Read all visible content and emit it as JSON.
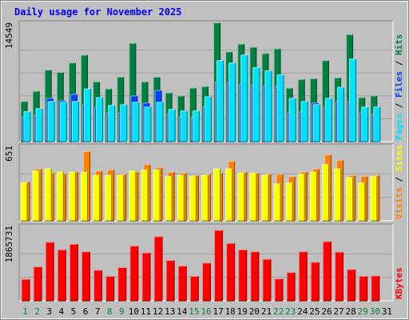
{
  "chart_data": {
    "title": "Daily usage for November 2025",
    "type": "bar",
    "categories": [
      "1",
      "2",
      "3",
      "4",
      "5",
      "6",
      "7",
      "8",
      "9",
      "10",
      "11",
      "12",
      "13",
      "14",
      "15",
      "16",
      "17",
      "18",
      "19",
      "20",
      "21",
      "22",
      "23",
      "24",
      "25",
      "26",
      "27",
      "28",
      "29",
      "30",
      "31"
    ],
    "weekend_days": [
      1,
      2,
      8,
      9,
      15,
      16,
      22,
      23,
      29,
      30
    ],
    "panels": [
      {
        "id": "hits",
        "max_label": "14549",
        "ymax": 14549,
        "series": [
          {
            "name": "Hits",
            "color": "#008040",
            "values": [
              5100,
              6400,
              9100,
              8800,
              10000,
              11000,
              7600,
              6700,
              8200,
              12500,
              7600,
              8200,
              6200,
              5800,
              6800,
              7000,
              15100,
              11400,
              12400,
              12000,
              11200,
              11800,
              6800,
              7900,
              8000,
              10300,
              8100,
              13600,
              5600,
              5800,
              null
            ]
          },
          {
            "name": "Files",
            "color": "#0040ff",
            "values": [
              3100,
              3400,
              5500,
              5200,
              6000,
              4700,
              4400,
              3600,
              3700,
              5800,
              4900,
              6500,
              3500,
              3200,
              3100,
              4500,
              7600,
              7500,
              7300,
              7200,
              7100,
              7000,
              3700,
              3800,
              4900,
              4400,
              5100,
              5100,
              3700,
              3500,
              null
            ]
          },
          {
            "name": "Pages",
            "color": "#00e0ff",
            "values": [
              3800,
              4200,
              5100,
              5000,
              5100,
              6700,
              5600,
              4600,
              4700,
              5000,
              4400,
              5000,
              4100,
              3900,
              3900,
              5700,
              10300,
              10000,
              11000,
              9400,
              9000,
              8500,
              5500,
              5100,
              4700,
              5500,
              6900,
              10500,
              4400,
              4400,
              null
            ]
          }
        ],
        "legend": [
          "Hits",
          "Files",
          "Pages"
        ]
      },
      {
        "id": "visits",
        "max_label": "651",
        "ymax": 651,
        "series": [
          {
            "name": "Visits",
            "color": "#ff8000",
            "values": [
              360,
              480,
              440,
              430,
              450,
              640,
              460,
              470,
              430,
              450,
              520,
              490,
              450,
              440,
              420,
              430,
              440,
              550,
              450,
              440,
              430,
              430,
              410,
              450,
              480,
              610,
              560,
              420,
              410,
              420,
              null
            ]
          },
          {
            "name": "Sites",
            "color": "#ffff00",
            "values": [
              350,
              460,
              480,
              450,
              450,
              450,
              420,
              420,
              420,
              460,
              470,
              470,
              410,
              420,
              410,
              420,
              480,
              480,
              440,
              440,
              420,
              340,
              350,
              430,
              450,
              520,
              480,
              400,
              350,
              410,
              null
            ]
          }
        ],
        "legend": [
          "Sites",
          "Visits"
        ]
      },
      {
        "id": "kbytes",
        "max_label": "1865731",
        "ymax": 1865731,
        "series": [
          {
            "name": "KBytes",
            "color": "#ff0000",
            "values": [
              570000,
              900000,
              1550000,
              1350000,
              1500000,
              1300000,
              810000,
              650000,
              880000,
              1450000,
              1270000,
              1700000,
              1070000,
              920000,
              650000,
              1000000,
              1900000,
              1520000,
              1350000,
              1300000,
              1100000,
              580000,
              750000,
              1300000,
              1020000,
              1570000,
              1290000,
              830000,
              650000,
              660000,
              null
            ]
          }
        ],
        "legend": [
          "KBytes"
        ]
      }
    ],
    "axis_label_color": "#008040"
  }
}
